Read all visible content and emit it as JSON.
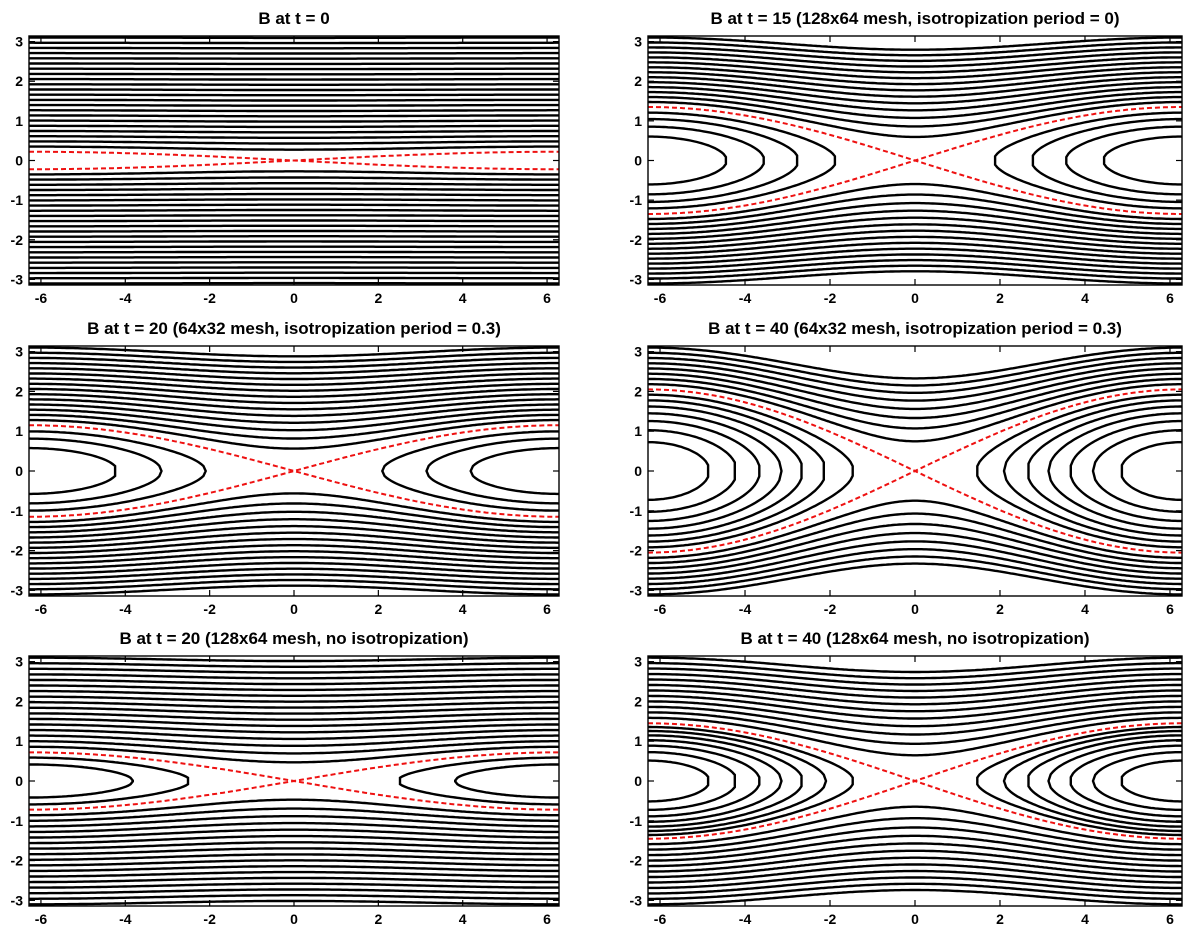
{
  "figure": {
    "colors": {
      "field_line": "#000000",
      "separatrix": "#ee1111",
      "axes": "#000000",
      "background": "#ffffff"
    }
  },
  "chart_data": [
    {
      "type": "line",
      "title": "B at t = 0",
      "xlim": [
        -6.283,
        6.283
      ],
      "ylim": [
        -3.1416,
        3.1416
      ],
      "xticks": [
        -6,
        -4,
        -2,
        0,
        2,
        4,
        6
      ],
      "yticks": [
        -3,
        -2,
        -1,
        0,
        1,
        2,
        3
      ],
      "grid": false,
      "series": [
        {
          "kind": "field_lines",
          "island_half_width": 0.0,
          "closed_levels": 0,
          "open_levels": 22
        }
      ],
      "separatrix_half_width": 0.22
    },
    {
      "type": "line",
      "title": "B at t = 15 (128x64 mesh, isotropization period = 0)",
      "xlim": [
        -6.283,
        6.283
      ],
      "ylim": [
        -3.1416,
        3.1416
      ],
      "xticks": [
        -6,
        -4,
        -2,
        0,
        2,
        4,
        6
      ],
      "yticks": [
        -3,
        -2,
        -1,
        0,
        1,
        2,
        3
      ],
      "grid": false,
      "series": [
        {
          "kind": "field_lines",
          "island_half_width": 1.35,
          "closed_levels": 4,
          "open_levels": 14
        }
      ],
      "separatrix_half_width": 1.35
    },
    {
      "type": "line",
      "title": "B at t = 20 (64x32 mesh, isotropization period = 0.3)",
      "xlim": [
        -6.283,
        6.283
      ],
      "ylim": [
        -3.1416,
        3.1416
      ],
      "xticks": [
        -6,
        -4,
        -2,
        0,
        2,
        4,
        6
      ],
      "yticks": [
        -3,
        -2,
        -1,
        0,
        1,
        2,
        3
      ],
      "grid": false,
      "series": [
        {
          "kind": "field_lines",
          "island_half_width": 1.15,
          "closed_levels": 3,
          "open_levels": 15
        }
      ],
      "separatrix_half_width": 1.15
    },
    {
      "type": "line",
      "title": "B at t = 40 (64x32 mesh, isotropization period = 0.3)",
      "xlim": [
        -6.283,
        6.283
      ],
      "ylim": [
        -3.1416,
        3.1416
      ],
      "xticks": [
        -6,
        -4,
        -2,
        0,
        2,
        4,
        6
      ],
      "yticks": [
        -3,
        -2,
        -1,
        0,
        1,
        2,
        3
      ],
      "grid": false,
      "series": [
        {
          "kind": "field_lines",
          "island_half_width": 2.05,
          "closed_levels": 7,
          "open_levels": 8
        }
      ],
      "separatrix_half_width": 2.05
    },
    {
      "type": "line",
      "title": "B at t = 20 (128x64 mesh, no isotropization)",
      "xlim": [
        -6.283,
        6.283
      ],
      "ylim": [
        -3.1416,
        3.1416
      ],
      "xticks": [
        -6,
        -4,
        -2,
        0,
        2,
        4,
        6
      ],
      "yticks": [
        -3,
        -2,
        -1,
        0,
        1,
        2,
        3
      ],
      "grid": false,
      "series": [
        {
          "kind": "field_lines",
          "island_half_width": 0.72,
          "closed_levels": 2,
          "open_levels": 17
        }
      ],
      "separatrix_half_width": 0.72
    },
    {
      "type": "line",
      "title": "B at t = 40 (128x64 mesh, no isotropization)",
      "xlim": [
        -6.283,
        6.283
      ],
      "ylim": [
        -3.1416,
        3.1416
      ],
      "xticks": [
        -6,
        -4,
        -2,
        0,
        2,
        4,
        6
      ],
      "yticks": [
        -3,
        -2,
        -1,
        0,
        1,
        2,
        3
      ],
      "grid": false,
      "series": [
        {
          "kind": "field_lines",
          "island_half_width": 1.45,
          "closed_levels": 7,
          "open_levels": 12
        }
      ],
      "separatrix_half_width": 1.45
    }
  ]
}
